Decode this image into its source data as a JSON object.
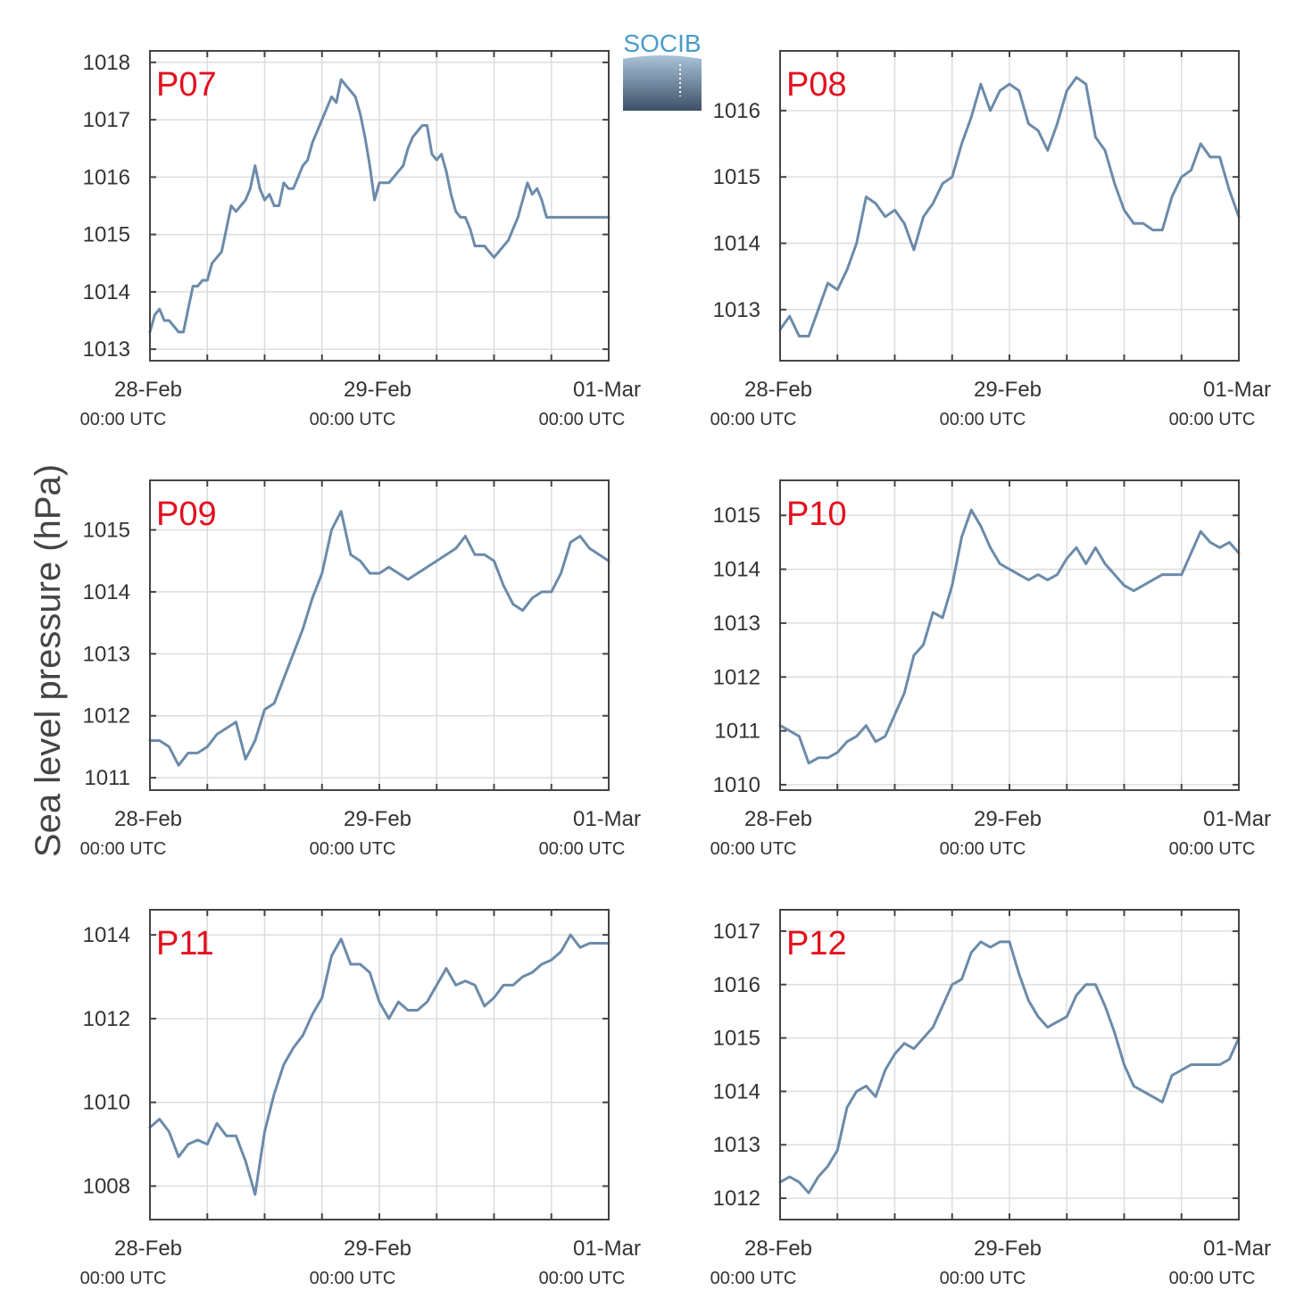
{
  "figure": {
    "ylabel": "Sea level pressure (hPa)",
    "logo_text": "SOCIB",
    "colors": {
      "line": "#6b8baa",
      "station_label": "#e3101e",
      "grid": "#dddddd",
      "axes": "#444444"
    }
  },
  "chart_data": [
    {
      "type": "line",
      "station": "P07",
      "ylim": [
        1012.8,
        1018.2
      ],
      "yticks": [
        1013,
        1014,
        1015,
        1016,
        1017,
        1018
      ],
      "xlim": [
        0,
        48
      ],
      "xticks": [
        {
          "x": 0,
          "date": "28-Feb",
          "time": "00:00 UTC"
        },
        {
          "x": 24,
          "date": "29-Feb",
          "time": "00:00 UTC"
        },
        {
          "x": 48,
          "date": "01-Mar",
          "time": "00:00 UTC"
        }
      ],
      "x_minor": [
        6,
        12,
        18,
        30,
        36,
        42
      ],
      "grid": true,
      "series": [
        {
          "x": [
            0,
            0.5,
            1,
            1.5,
            2,
            2.5,
            3,
            3.5,
            4,
            4.5,
            5,
            5.5,
            6,
            6.5,
            7,
            7.5,
            8,
            8.5,
            9,
            9.5,
            10,
            10.5,
            11,
            11.5,
            12,
            12.5,
            13,
            13.5,
            14,
            14.5,
            15,
            15.5,
            16,
            16.5,
            17,
            17.5,
            18,
            18.5,
            19,
            19.5,
            20,
            20.5,
            21,
            21.5,
            22,
            22.5,
            23,
            23.5,
            24,
            24.5,
            25,
            25.5,
            26,
            26.5,
            27,
            27.5,
            28,
            28.5,
            29,
            29.5,
            30,
            30.5,
            31,
            31.5,
            32,
            32.5,
            33,
            33.5,
            34,
            34.5,
            35,
            35.5,
            36,
            36.5,
            37,
            37.5,
            38,
            38.5,
            39,
            39.5,
            40,
            40.5,
            41,
            41.5,
            42,
            42.5,
            43,
            43.5,
            44,
            44.5,
            45,
            45.5,
            46,
            46.5,
            47,
            47.5,
            48
          ],
          "values": [
            1013.3,
            1013.6,
            1013.7,
            1013.5,
            1013.5,
            1013.4,
            1013.3,
            1013.3,
            1013.7,
            1014.1,
            1014.1,
            1014.2,
            1014.2,
            1014.5,
            1014.6,
            1014.7,
            1015.1,
            1015.5,
            1015.4,
            1015.5,
            1015.6,
            1015.8,
            1016.2,
            1015.8,
            1015.6,
            1015.7,
            1015.5,
            1015.5,
            1015.9,
            1015.8,
            1015.8,
            1016.0,
            1016.2,
            1016.3,
            1016.6,
            1016.8,
            1017.0,
            1017.2,
            1017.4,
            1017.3,
            1017.7,
            1017.6,
            1017.5,
            1017.4,
            1017.1,
            1016.7,
            1016.2,
            1015.6,
            1015.9,
            1015.9,
            1015.9,
            1016.0,
            1016.1,
            1016.2,
            1016.5,
            1016.7,
            1016.8,
            1016.9,
            1016.9,
            1016.4,
            1016.3,
            1016.4,
            1016.1,
            1015.7,
            1015.4,
            1015.3,
            1015.3,
            1015.1,
            1014.8,
            1014.8,
            1014.8,
            1014.7,
            1014.6,
            1014.7,
            1014.8,
            1014.9,
            1015.1,
            1015.3,
            1015.6,
            1015.9,
            1015.7,
            1015.8,
            1015.6,
            1015.3,
            1015.3,
            1015.3,
            1015.3,
            1015.3,
            1015.3,
            1015.3,
            1015.3,
            1015.3,
            1015.3,
            1015.3,
            1015.3,
            1015.3,
            1015.3
          ]
        }
      ]
    },
    {
      "type": "line",
      "station": "P08",
      "ylim": [
        1012.23,
        1016.9
      ],
      "yticks": [
        1013,
        1014,
        1015,
        1016
      ],
      "xlim": [
        0,
        48
      ],
      "xticks": [
        {
          "x": 0,
          "date": "28-Feb",
          "time": "00:00 UTC"
        },
        {
          "x": 24,
          "date": "29-Feb",
          "time": "00:00 UTC"
        },
        {
          "x": 48,
          "date": "01-Mar",
          "time": "00:00 UTC"
        }
      ],
      "x_minor": [
        6,
        12,
        18,
        30,
        36,
        42
      ],
      "grid": true,
      "series": [
        {
          "x": [
            0,
            1,
            2,
            3,
            4,
            5,
            6,
            7,
            8,
            9,
            10,
            11,
            12,
            13,
            14,
            15,
            16,
            17,
            18,
            19,
            20,
            21,
            22,
            23,
            24,
            25,
            26,
            27,
            28,
            29,
            30,
            31,
            32,
            33,
            34,
            35,
            36,
            37,
            38,
            39,
            40,
            41,
            42,
            43,
            44,
            45,
            46,
            47,
            48
          ],
          "values": [
            1012.7,
            1012.9,
            1012.6,
            1012.6,
            1013.0,
            1013.4,
            1013.3,
            1013.6,
            1014.0,
            1014.7,
            1014.6,
            1014.4,
            1014.5,
            1014.3,
            1013.9,
            1014.4,
            1014.6,
            1014.9,
            1015.0,
            1015.5,
            1015.9,
            1016.4,
            1016.0,
            1016.3,
            1016.4,
            1016.3,
            1015.8,
            1015.7,
            1015.4,
            1015.8,
            1016.3,
            1016.5,
            1016.4,
            1015.6,
            1015.4,
            1014.9,
            1014.5,
            1014.3,
            1014.3,
            1014.2,
            1014.2,
            1014.7,
            1015.0,
            1015.1,
            1015.5,
            1015.3,
            1015.3,
            1014.8,
            1014.4
          ]
        }
      ]
    },
    {
      "type": "line",
      "station": "P09",
      "ylim": [
        1010.8,
        1015.8
      ],
      "yticks": [
        1011,
        1012,
        1013,
        1014,
        1015
      ],
      "xlim": [
        0,
        48
      ],
      "xticks": [
        {
          "x": 0,
          "date": "28-Feb",
          "time": "00:00 UTC"
        },
        {
          "x": 24,
          "date": "29-Feb",
          "time": "00:00 UTC"
        },
        {
          "x": 48,
          "date": "01-Mar",
          "time": "00:00 UTC"
        }
      ],
      "x_minor": [
        6,
        12,
        18,
        30,
        36,
        42
      ],
      "grid": true,
      "series": [
        {
          "x": [
            0,
            1,
            2,
            3,
            4,
            5,
            6,
            7,
            8,
            9,
            10,
            11,
            12,
            13,
            14,
            15,
            16,
            17,
            18,
            19,
            20,
            21,
            22,
            23,
            24,
            25,
            26,
            27,
            28,
            29,
            30,
            31,
            32,
            33,
            34,
            35,
            36,
            37,
            38,
            39,
            40,
            41,
            42,
            43,
            44,
            45,
            46,
            47,
            48
          ],
          "values": [
            1011.6,
            1011.6,
            1011.5,
            1011.2,
            1011.4,
            1011.4,
            1011.5,
            1011.7,
            1011.8,
            1011.9,
            1011.3,
            1011.6,
            1012.1,
            1012.2,
            1012.6,
            1013.0,
            1013.4,
            1013.9,
            1014.3,
            1015.0,
            1015.3,
            1014.6,
            1014.5,
            1014.3,
            1014.3,
            1014.4,
            1014.3,
            1014.2,
            1014.3,
            1014.4,
            1014.5,
            1014.6,
            1014.7,
            1014.9,
            1014.6,
            1014.6,
            1014.5,
            1014.1,
            1013.8,
            1013.7,
            1013.9,
            1014.0,
            1014.0,
            1014.3,
            1014.8,
            1014.9,
            1014.7,
            1014.6,
            1014.5
          ]
        }
      ]
    },
    {
      "type": "line",
      "station": "P10",
      "ylim": [
        1009.9,
        1015.65
      ],
      "yticks": [
        1010,
        1011,
        1012,
        1013,
        1014,
        1015
      ],
      "xlim": [
        0,
        48
      ],
      "xticks": [
        {
          "x": 0,
          "date": "28-Feb",
          "time": "00:00 UTC"
        },
        {
          "x": 24,
          "date": "29-Feb",
          "time": "00:00 UTC"
        },
        {
          "x": 48,
          "date": "01-Mar",
          "time": "00:00 UTC"
        }
      ],
      "x_minor": [
        6,
        12,
        18,
        30,
        36,
        42
      ],
      "grid": true,
      "series": [
        {
          "x": [
            0,
            1,
            2,
            3,
            4,
            5,
            6,
            7,
            8,
            9,
            10,
            11,
            12,
            13,
            14,
            15,
            16,
            17,
            18,
            19,
            20,
            21,
            22,
            23,
            24,
            25,
            26,
            27,
            28,
            29,
            30,
            31,
            32,
            33,
            34,
            35,
            36,
            37,
            38,
            39,
            40,
            41,
            42,
            43,
            44,
            45,
            46,
            47,
            48
          ],
          "values": [
            1011.1,
            1011.0,
            1010.9,
            1010.4,
            1010.5,
            1010.5,
            1010.6,
            1010.8,
            1010.9,
            1011.1,
            1010.8,
            1010.9,
            1011.3,
            1011.7,
            1012.4,
            1012.6,
            1013.2,
            1013.1,
            1013.7,
            1014.6,
            1015.1,
            1014.8,
            1014.4,
            1014.1,
            1014.0,
            1013.9,
            1013.8,
            1013.9,
            1013.8,
            1013.9,
            1014.2,
            1014.4,
            1014.1,
            1014.4,
            1014.1,
            1013.9,
            1013.7,
            1013.6,
            1013.7,
            1013.8,
            1013.9,
            1013.9,
            1013.9,
            1014.3,
            1014.7,
            1014.5,
            1014.4,
            1014.5,
            1014.3
          ]
        }
      ]
    },
    {
      "type": "line",
      "station": "P11",
      "ylim": [
        1007.2,
        1014.6
      ],
      "yticks": [
        1008,
        1010,
        1012,
        1014
      ],
      "xlim": [
        0,
        48
      ],
      "xticks": [
        {
          "x": 0,
          "date": "28-Feb",
          "time": "00:00 UTC"
        },
        {
          "x": 24,
          "date": "29-Feb",
          "time": "00:00 UTC"
        },
        {
          "x": 48,
          "date": "01-Mar",
          "time": "00:00 UTC"
        }
      ],
      "x_minor": [
        6,
        12,
        18,
        30,
        36,
        42
      ],
      "grid": true,
      "series": [
        {
          "x": [
            0,
            1,
            2,
            3,
            4,
            5,
            6,
            7,
            8,
            9,
            10,
            11,
            12,
            13,
            14,
            15,
            16,
            17,
            18,
            19,
            20,
            21,
            22,
            23,
            24,
            25,
            26,
            27,
            28,
            29,
            30,
            31,
            32,
            33,
            34,
            35,
            36,
            37,
            38,
            39,
            40,
            41,
            42,
            43,
            44,
            45,
            46,
            47,
            48
          ],
          "values": [
            1009.4,
            1009.6,
            1009.3,
            1008.7,
            1009.0,
            1009.1,
            1009.0,
            1009.5,
            1009.2,
            1009.2,
            1008.6,
            1007.8,
            1009.3,
            1010.2,
            1010.9,
            1011.3,
            1011.6,
            1012.1,
            1012.5,
            1013.5,
            1013.9,
            1013.3,
            1013.3,
            1013.1,
            1012.4,
            1012.0,
            1012.4,
            1012.2,
            1012.2,
            1012.4,
            1012.8,
            1013.2,
            1012.8,
            1012.9,
            1012.8,
            1012.3,
            1012.5,
            1012.8,
            1012.8,
            1013.0,
            1013.1,
            1013.3,
            1013.4,
            1013.6,
            1014.0,
            1013.7,
            1013.8,
            1013.8,
            1013.8
          ]
        }
      ]
    },
    {
      "type": "line",
      "station": "P12",
      "ylim": [
        1011.6,
        1017.4
      ],
      "yticks": [
        1012,
        1013,
        1014,
        1015,
        1016,
        1017
      ],
      "xlim": [
        0,
        48
      ],
      "xticks": [
        {
          "x": 0,
          "date": "28-Feb",
          "time": "00:00 UTC"
        },
        {
          "x": 24,
          "date": "29-Feb",
          "time": "00:00 UTC"
        },
        {
          "x": 48,
          "date": "01-Mar",
          "time": "00:00 UTC"
        }
      ],
      "x_minor": [
        6,
        12,
        18,
        30,
        36,
        42
      ],
      "grid": true,
      "series": [
        {
          "x": [
            0,
            1,
            2,
            3,
            4,
            5,
            6,
            7,
            8,
            9,
            10,
            11,
            12,
            13,
            14,
            15,
            16,
            17,
            18,
            19,
            20,
            21,
            22,
            23,
            24,
            25,
            26,
            27,
            28,
            29,
            30,
            31,
            32,
            33,
            34,
            35,
            36,
            37,
            38,
            39,
            40,
            41,
            42,
            43,
            44,
            45,
            46,
            47,
            48
          ],
          "values": [
            1012.3,
            1012.4,
            1012.3,
            1012.1,
            1012.4,
            1012.6,
            1012.9,
            1013.7,
            1014.0,
            1014.1,
            1013.9,
            1014.4,
            1014.7,
            1014.9,
            1014.8,
            1015.0,
            1015.2,
            1015.6,
            1016.0,
            1016.1,
            1016.6,
            1016.8,
            1016.7,
            1016.8,
            1016.8,
            1016.2,
            1015.7,
            1015.4,
            1015.2,
            1015.3,
            1015.4,
            1015.8,
            1016.0,
            1016.0,
            1015.6,
            1015.1,
            1014.5,
            1014.1,
            1014.0,
            1013.9,
            1013.8,
            1014.3,
            1014.4,
            1014.5,
            1014.5,
            1014.5,
            1014.5,
            1014.6,
            1015.0
          ]
        }
      ]
    }
  ]
}
